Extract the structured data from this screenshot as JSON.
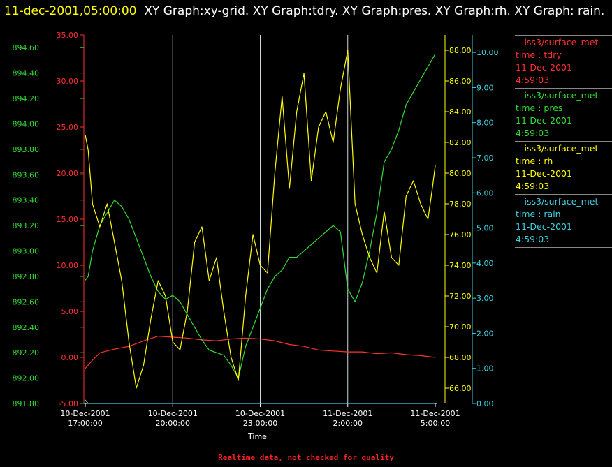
{
  "title": {
    "timestamp": "11-dec-2001,05:00:00",
    "text": "XY Graph:xy-grid.  XY Graph:tdry.  XY Graph:pres.  XY Graph:rh.  XY Graph: rain."
  },
  "legend": [
    {
      "source": "—iss3/surface_met",
      "field": "time : tdry",
      "date": "11-Dec-2001",
      "time": "4:59:03",
      "color": "#ff3030"
    },
    {
      "source": "—iss3/surface_met",
      "field": "time : pres",
      "date": "11-Dec-2001",
      "time": "4:59:03",
      "color": "#33dd33"
    },
    {
      "source": "—iss3/surface_met",
      "field": "time : rh",
      "date": "11-Dec-2001",
      "time": "4:59:03",
      "color": "#ffff00"
    },
    {
      "source": "—iss3/surface_met",
      "field": "time : rain",
      "date": "11-Dec-2001",
      "time": "4:59:03",
      "color": "#40d0e0"
    }
  ],
  "footer": "Realtime data, not checked for quality",
  "chart_data": {
    "type": "line",
    "xlabel": "Time",
    "x_ticks": [
      {
        "date": "10-Dec-2001",
        "time": "17:00:00",
        "hours": 0
      },
      {
        "date": "10-Dec-2001",
        "time": "20:00:00",
        "hours": 3
      },
      {
        "date": "10-Dec-2001",
        "time": "23:00:00",
        "hours": 6
      },
      {
        "date": "11-Dec-2001",
        "time": "2:00:00",
        "hours": 9
      },
      {
        "date": "11-Dec-2001",
        "time": "5:00:00",
        "hours": 12
      }
    ],
    "xlim_hours": [
      0,
      12
    ],
    "grid": "vertical",
    "series": [
      {
        "name": "tdry",
        "color": "#ff3030",
        "axis": "tdry",
        "hours": [
          0,
          0.25,
          0.5,
          1,
          1.5,
          2,
          2.5,
          3,
          3.5,
          4,
          4.5,
          5,
          5.5,
          6,
          6.5,
          7,
          7.5,
          8,
          8.5,
          9,
          9.5,
          10,
          10.5,
          11,
          11.5,
          12
        ],
        "values": [
          -1.2,
          -0.3,
          0.5,
          0.9,
          1.2,
          1.8,
          2.3,
          2.2,
          2.1,
          1.9,
          1.8,
          2.0,
          2.1,
          2.0,
          1.8,
          1.4,
          1.2,
          0.8,
          0.7,
          0.6,
          0.6,
          0.4,
          0.5,
          0.3,
          0.2,
          0.0
        ]
      },
      {
        "name": "pres",
        "color": "#33dd33",
        "axis": "pres",
        "hours": [
          0,
          0.1,
          0.25,
          0.5,
          0.75,
          1,
          1.25,
          1.5,
          1.75,
          2,
          2.25,
          2.5,
          2.75,
          3,
          3.25,
          3.5,
          3.75,
          4,
          4.25,
          4.5,
          4.75,
          5,
          5.25,
          5.5,
          5.75,
          6,
          6.25,
          6.5,
          6.75,
          7,
          7.25,
          7.5,
          7.75,
          8,
          8.25,
          8.5,
          8.75,
          9,
          9.25,
          9.5,
          9.75,
          10,
          10.25,
          10.5,
          10.75,
          11,
          11.25,
          11.5,
          11.75,
          12
        ],
        "values": [
          892.77,
          892.8,
          893.0,
          893.2,
          893.3,
          893.4,
          893.35,
          893.25,
          893.1,
          892.95,
          892.8,
          892.68,
          892.62,
          892.65,
          892.6,
          892.5,
          892.4,
          892.3,
          892.22,
          892.2,
          892.18,
          892.1,
          892.0,
          892.25,
          892.4,
          892.55,
          892.7,
          892.8,
          892.85,
          892.95,
          892.95,
          893.0,
          893.05,
          893.1,
          893.15,
          893.2,
          893.15,
          892.7,
          892.6,
          892.75,
          893.0,
          893.3,
          893.7,
          893.8,
          893.95,
          894.15,
          894.25,
          894.35,
          894.45,
          894.55
        ]
      },
      {
        "name": "rh",
        "color": "#ffff00",
        "axis": "rh",
        "hours": [
          0,
          0.1,
          0.25,
          0.5,
          0.75,
          1,
          1.25,
          1.5,
          1.75,
          2,
          2.25,
          2.5,
          2.75,
          3,
          3.25,
          3.5,
          3.75,
          4,
          4.25,
          4.5,
          4.75,
          5,
          5.25,
          5.5,
          5.75,
          6,
          6.25,
          6.5,
          6.75,
          7,
          7.25,
          7.5,
          7.75,
          8,
          8.25,
          8.5,
          8.75,
          9,
          9.25,
          9.5,
          9.75,
          10,
          10.25,
          10.5,
          10.75,
          11,
          11.25,
          11.5,
          11.75,
          11.9,
          12
        ],
        "values": [
          82.5,
          81.5,
          78.0,
          76.5,
          78.0,
          75.5,
          73.0,
          69.0,
          66.0,
          67.5,
          70.5,
          73.0,
          72.0,
          69.0,
          68.5,
          71.0,
          75.5,
          76.5,
          73.0,
          74.5,
          71.0,
          68.0,
          66.5,
          72.0,
          76.0,
          74.0,
          73.5,
          80.0,
          85.0,
          79.0,
          84.0,
          86.5,
          79.5,
          83.0,
          84.0,
          82.0,
          85.5,
          88.0,
          78.0,
          76.0,
          74.5,
          73.5,
          77.5,
          74.5,
          74.0,
          78.5,
          79.5,
          78.0,
          77.0,
          79.0,
          80.5
        ]
      },
      {
        "name": "rain",
        "color": "#40d0e0",
        "axis": "rain",
        "hours": [
          0,
          0.1,
          12
        ],
        "values": [
          0.1,
          0.0,
          0.0
        ]
      }
    ],
    "axes": {
      "tdry": {
        "color": "#ff3030",
        "side": "left",
        "min": -5,
        "max": 35,
        "ticks": [
          "-5.00",
          "0.00",
          "5.00",
          "10.00",
          "15.00",
          "20.00",
          "25.00",
          "30.00",
          "35.00"
        ]
      },
      "pres": {
        "color": "#33dd33",
        "side": "left",
        "min": 891.8,
        "max": 894.7,
        "ticks": [
          "891.80",
          "892.00",
          "892.20",
          "892.40",
          "892.60",
          "892.80",
          "893.00",
          "893.20",
          "893.40",
          "893.60",
          "893.80",
          "894.00",
          "894.20",
          "894.40",
          "894.60"
        ]
      },
      "rh": {
        "color": "#ffff00",
        "side": "right",
        "min": 65,
        "max": 89,
        "ticks": [
          "66.00",
          "68.00",
          "70.00",
          "72.00",
          "74.00",
          "76.00",
          "78.00",
          "80.00",
          "82.00",
          "84.00",
          "86.00",
          "88.00"
        ]
      },
      "rain": {
        "color": "#40d0e0",
        "side": "right",
        "min": 0,
        "max": 10.5,
        "ticks": [
          "0.00",
          "1.00",
          "2.00",
          "3.00",
          "4.00",
          "5.00",
          "6.00",
          "7.00",
          "8.00",
          "9.00",
          "10.00"
        ]
      }
    }
  }
}
